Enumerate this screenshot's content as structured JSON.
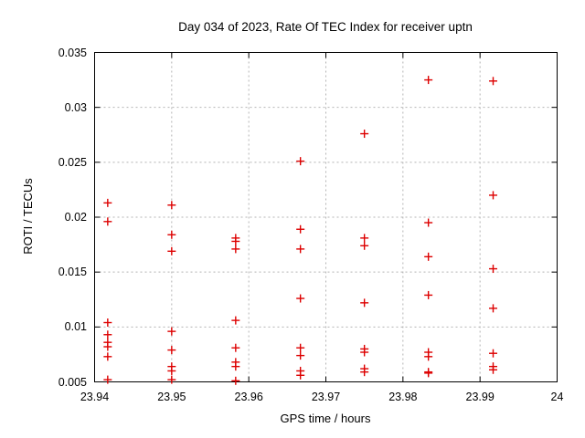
{
  "chart_data": {
    "type": "scatter",
    "title": "Day 034 of 2023, Rate Of TEC Index for receiver uptn",
    "xlabel": "GPS time / hours",
    "ylabel": "ROTI / TECUs",
    "xlim": [
      23.94,
      24
    ],
    "ylim": [
      0.005,
      0.035
    ],
    "xticks": [
      23.94,
      23.95,
      23.96,
      23.97,
      23.98,
      23.99,
      24
    ],
    "xtick_labels": [
      "23.94",
      "23.95",
      "23.96",
      "23.97",
      "23.98",
      "23.99",
      "24"
    ],
    "yticks": [
      0.005,
      0.01,
      0.015,
      0.02,
      0.025,
      0.03,
      0.035
    ],
    "ytick_labels": [
      "0.005",
      "0.01",
      "0.015",
      "0.02",
      "0.025",
      "0.03",
      "0.035"
    ],
    "grid": true,
    "grid_color": "#b3b3b3",
    "border_color": "#000000",
    "marker": "plus",
    "marker_color": "#dd0000",
    "legend": "none",
    "series": [
      {
        "name": "ROTI",
        "points": [
          [
            23.9417,
            0.0213
          ],
          [
            23.9417,
            0.0196
          ],
          [
            23.9417,
            0.0104
          ],
          [
            23.9417,
            0.0093
          ],
          [
            23.9417,
            0.0086
          ],
          [
            23.9417,
            0.0082
          ],
          [
            23.9417,
            0.0073
          ],
          [
            23.9417,
            0.0052
          ],
          [
            23.95,
            0.0211
          ],
          [
            23.95,
            0.0184
          ],
          [
            23.95,
            0.0169
          ],
          [
            23.95,
            0.0096
          ],
          [
            23.95,
            0.0079
          ],
          [
            23.95,
            0.0064
          ],
          [
            23.95,
            0.006
          ],
          [
            23.95,
            0.0052
          ],
          [
            23.9583,
            0.0181
          ],
          [
            23.9583,
            0.0178
          ],
          [
            23.9583,
            0.0171
          ],
          [
            23.9583,
            0.0106
          ],
          [
            23.9583,
            0.0081
          ],
          [
            23.9583,
            0.0068
          ],
          [
            23.9583,
            0.0064
          ],
          [
            23.9583,
            0.0051
          ],
          [
            23.9667,
            0.0251
          ],
          [
            23.9667,
            0.0189
          ],
          [
            23.9667,
            0.0171
          ],
          [
            23.9667,
            0.0126
          ],
          [
            23.9667,
            0.0081
          ],
          [
            23.9667,
            0.0074
          ],
          [
            23.9667,
            0.006
          ],
          [
            23.9667,
            0.0056
          ],
          [
            23.975,
            0.0276
          ],
          [
            23.975,
            0.0181
          ],
          [
            23.975,
            0.0174
          ],
          [
            23.975,
            0.0122
          ],
          [
            23.975,
            0.008
          ],
          [
            23.975,
            0.0077
          ],
          [
            23.975,
            0.0062
          ],
          [
            23.975,
            0.0059
          ],
          [
            23.9833,
            0.0325
          ],
          [
            23.9833,
            0.0195
          ],
          [
            23.9833,
            0.0164
          ],
          [
            23.9833,
            0.0129
          ],
          [
            23.9833,
            0.0077
          ],
          [
            23.9833,
            0.0073
          ],
          [
            23.9833,
            0.0059
          ],
          [
            23.9833,
            0.0058
          ],
          [
            23.9917,
            0.0324
          ],
          [
            23.9917,
            0.022
          ],
          [
            23.9917,
            0.0153
          ],
          [
            23.9917,
            0.0117
          ],
          [
            23.9917,
            0.0076
          ],
          [
            23.9917,
            0.0064
          ],
          [
            23.9917,
            0.0061
          ]
        ]
      }
    ]
  }
}
